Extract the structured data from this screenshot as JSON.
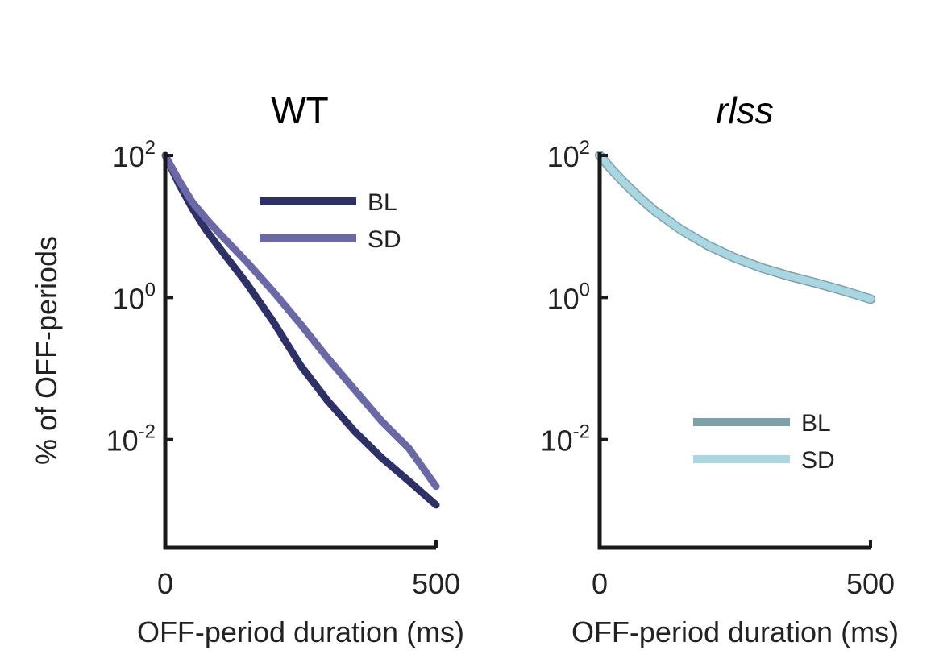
{
  "chart_data": [
    {
      "type": "line",
      "title": "WT",
      "title_style": "normal",
      "xlabel": "OFF-period duration (ms)",
      "ylabel": "% of OFF-periods",
      "y_scale": "log",
      "xlim": [
        0,
        500
      ],
      "ylim": [
        0.0003,
        100
      ],
      "x_ticks": [
        0,
        500
      ],
      "x_tick_labels": [
        "0",
        "500"
      ],
      "y_ticks": [
        {
          "value": 100,
          "base": "10",
          "exp": "2"
        },
        {
          "value": 1,
          "base": "10",
          "exp": "0"
        },
        {
          "value": 0.01,
          "base": "10",
          "exp": "-2"
        }
      ],
      "legend_position": "top-right",
      "series": [
        {
          "name": "BL",
          "color": "#2e3068",
          "x": [
            0,
            25,
            50,
            75,
            100,
            150,
            200,
            250,
            300,
            350,
            400,
            450,
            500
          ],
          "y": [
            100,
            40,
            18,
            9,
            5,
            1.6,
            0.45,
            0.11,
            0.035,
            0.013,
            0.0055,
            0.0026,
            0.0012
          ]
        },
        {
          "name": "SD",
          "color": "#6a68a6",
          "x": [
            0,
            25,
            50,
            75,
            100,
            150,
            200,
            250,
            300,
            350,
            400,
            450,
            500
          ],
          "y": [
            100,
            45,
            22,
            13,
            8,
            3.2,
            1.2,
            0.42,
            0.14,
            0.05,
            0.018,
            0.0075,
            0.0022
          ]
        }
      ]
    },
    {
      "type": "line",
      "title": "rlss",
      "title_style": "italic",
      "xlabel": "OFF-period duration (ms)",
      "ylabel": "",
      "y_scale": "log",
      "xlim": [
        0,
        500
      ],
      "ylim": [
        0.0003,
        100
      ],
      "x_ticks": [
        0,
        500
      ],
      "x_tick_labels": [
        "0",
        "500"
      ],
      "y_ticks": [
        {
          "value": 100,
          "base": "10",
          "exp": "2"
        },
        {
          "value": 1,
          "base": "10",
          "exp": "0"
        },
        {
          "value": 0.01,
          "base": "10",
          "exp": "-2"
        }
      ],
      "legend_position": "bottom-right",
      "series": [
        {
          "name": "BL",
          "color": "#7da0aa",
          "x": [
            0,
            25,
            50,
            75,
            100,
            150,
            200,
            250,
            300,
            350,
            400,
            450,
            500
          ],
          "y": [
            100,
            60,
            38,
            25,
            17,
            9,
            5.4,
            3.6,
            2.6,
            2.0,
            1.6,
            1.25,
            0.95
          ]
        },
        {
          "name": "SD",
          "color": "#a9d7e1",
          "x": [
            0,
            25,
            50,
            75,
            100,
            150,
            200,
            250,
            300,
            350,
            400,
            450,
            500
          ],
          "y": [
            100,
            60,
            38,
            25,
            17,
            9,
            5.4,
            3.6,
            2.6,
            2.0,
            1.6,
            1.25,
            0.95
          ]
        }
      ]
    }
  ]
}
